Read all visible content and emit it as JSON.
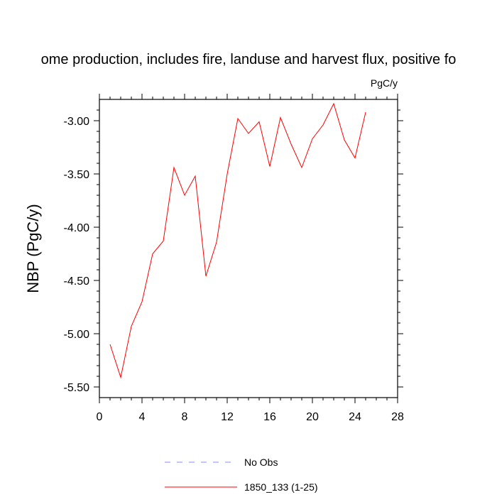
{
  "chart_data": {
    "type": "line",
    "title": "ome production, includes fire, landuse and harvest flux, positive fo",
    "units": "PgC/y",
    "xlabel": "",
    "ylabel": "NBP  (PgC/y)",
    "xlim": [
      0,
      28
    ],
    "ylim": [
      -5.6,
      -2.8
    ],
    "x_ticks": [
      0,
      4,
      8,
      12,
      16,
      20,
      24,
      28
    ],
    "x_tick_labels": [
      "0",
      "4",
      "8",
      "12",
      "16",
      "20",
      "24",
      "28"
    ],
    "y_ticks": [
      -5.5,
      -5.0,
      -4.5,
      -4.0,
      -3.5,
      -3.0
    ],
    "y_tick_labels": [
      "-5.50",
      "-5.00",
      "-4.50",
      "-4.00",
      "-3.50",
      "-3.00"
    ],
    "series": [
      {
        "name": "1850_133 (1-25)",
        "color": "#ff0000",
        "x": [
          1,
          2,
          3,
          4,
          5,
          6,
          7,
          8,
          9,
          10,
          11,
          12,
          13,
          14,
          15,
          16,
          17,
          18,
          19,
          20,
          21,
          22,
          23,
          24,
          25
        ],
        "values": [
          -5.1,
          -5.41,
          -4.93,
          -4.7,
          -4.25,
          -4.13,
          -3.44,
          -3.7,
          -3.52,
          -4.46,
          -4.14,
          -3.5,
          -2.98,
          -3.12,
          -3.01,
          -3.43,
          -2.97,
          -3.22,
          -3.44,
          -3.17,
          -3.04,
          -2.84,
          -3.18,
          -3.35,
          -2.92
        ]
      }
    ],
    "legend": [
      {
        "label": "No Obs",
        "color": "#8888ff",
        "style": "dashed"
      },
      {
        "label": "1850_133 (1-25)",
        "color": "#ff0000",
        "style": "solid"
      }
    ]
  }
}
